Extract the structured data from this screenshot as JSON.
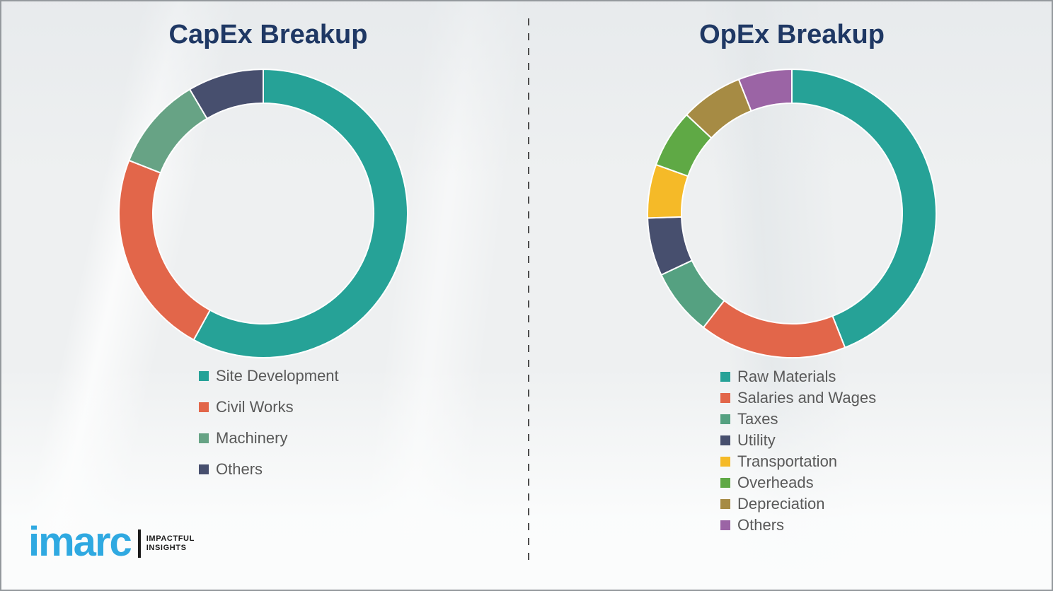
{
  "styles": {
    "title_color": "#1F3864",
    "legend_text_color": "#595959",
    "divider_color": "#4d4d4d",
    "page_border_color": "#94999d"
  },
  "logo": {
    "brand": "imarc",
    "brand_color": "#2FA9E1",
    "tagline_line1": "IMPACTFUL",
    "tagline_line2": "INSIGHTS"
  },
  "chart_data": [
    {
      "type": "pie",
      "subtype": "donut",
      "title": "CapEx Breakup",
      "start_angle_deg": 0,
      "direction": "clockwise",
      "legend_position": "bottom-left",
      "labels": [
        "Site Development",
        "Civil Works",
        "Machinery",
        "Others"
      ],
      "values": [
        58,
        23,
        10.5,
        8.5
      ],
      "colors": [
        "#26A297",
        "#E2664A",
        "#67A385",
        "#474F6E"
      ]
    },
    {
      "type": "pie",
      "subtype": "donut",
      "title": "OpEx Breakup",
      "start_angle_deg": 0,
      "direction": "clockwise",
      "legend_position": "bottom-left",
      "labels": [
        "Raw Materials",
        "Salaries and Wages",
        "Taxes",
        "Utility",
        "Transportation",
        "Overheads",
        "Depreciation",
        "Others"
      ],
      "values": [
        44,
        16.5,
        7.5,
        6.5,
        6,
        6.5,
        7,
        6
      ],
      "colors": [
        "#26A297",
        "#E2664A",
        "#55A181",
        "#474F6E",
        "#F5BA28",
        "#5FA945",
        "#A68B44",
        "#9B64A5"
      ]
    }
  ]
}
